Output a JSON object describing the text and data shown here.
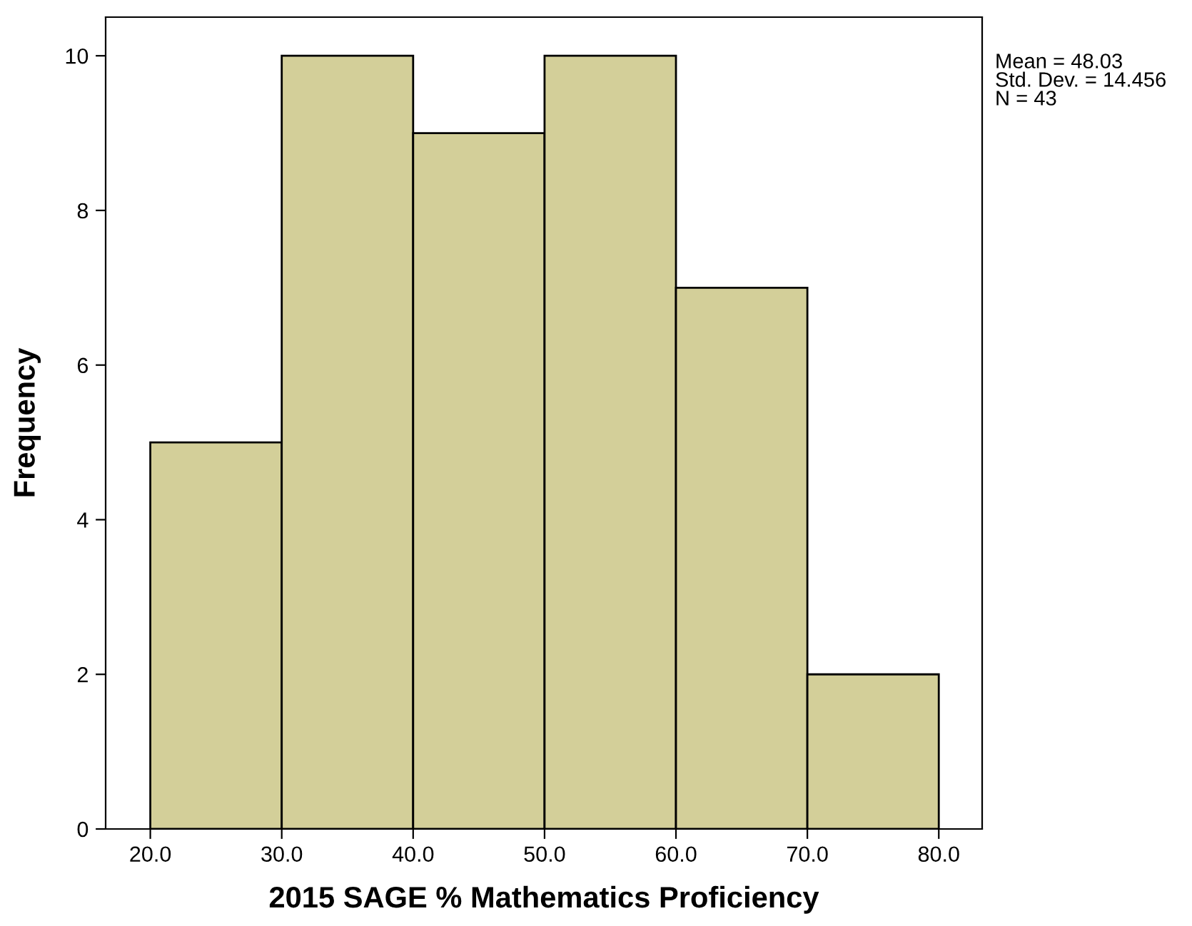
{
  "chart_data": {
    "type": "histogram",
    "xlabel": "2015 SAGE % Mathematics Proficiency",
    "ylabel": "Frequency",
    "bins": [
      20,
      30,
      40,
      50,
      60,
      70,
      80
    ],
    "values": [
      5,
      10,
      9,
      10,
      7,
      2
    ],
    "color": "#d3cf99",
    "xlim": [
      16.6,
      83.3
    ],
    "ylim": [
      0,
      10.5
    ],
    "xticks": [
      {
        "value": 20,
        "label": "20.0"
      },
      {
        "value": 30,
        "label": "30.0"
      },
      {
        "value": 40,
        "label": "40.0"
      },
      {
        "value": 50,
        "label": "50.0"
      },
      {
        "value": 60,
        "label": "60.0"
      },
      {
        "value": 70,
        "label": "70.0"
      },
      {
        "value": 80,
        "label": "80.0"
      }
    ],
    "yticks": [
      0,
      2,
      4,
      6,
      8,
      10
    ],
    "grid": false,
    "annotations": [
      "Mean = 48.03",
      "Std. Dev. = 14.456",
      "N = 43"
    ]
  }
}
